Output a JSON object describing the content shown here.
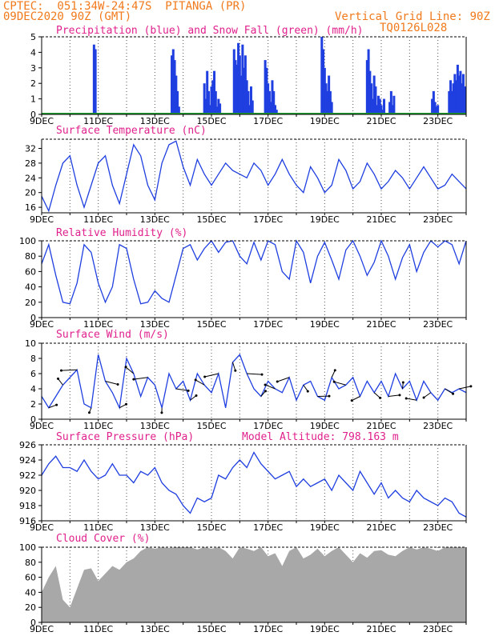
{
  "header": {
    "left_line1": "CPTEC:  051:34W-24:47S  PITANGA (PR)",
    "left_line2": "09DEC2020 90Z (GMT)",
    "right_line1": "Vertical Grid Line: 90Z",
    "right_line2": "TQ0126L028"
  },
  "colors": {
    "header": "#f07a1c",
    "title": "#e0208c",
    "line": "#1f3fe0",
    "cloud": "#a8a8a8",
    "snow": "#21a030",
    "vector": "#000000"
  },
  "x_ticks": [
    "9DEC",
    "11DEC",
    "13DEC",
    "15DEC",
    "17DEC",
    "19DEC",
    "21DEC",
    "23DEC"
  ],
  "chart_data": [
    {
      "id": "precip",
      "type": "bar",
      "title": "Precipitation (blue) and Snow Fall (green) (mm/h)",
      "x_range_days": [
        0,
        15
      ],
      "ylim": [
        0,
        5
      ],
      "y_ticks": [
        "0",
        "1",
        "2",
        "3",
        "4",
        "5"
      ],
      "series": [
        {
          "name": "Precipitation",
          "color": "#1f3fe0",
          "x": [
            1.85,
            1.9,
            4.6,
            4.65,
            4.7,
            4.75,
            4.8,
            4.85,
            5.75,
            5.8,
            5.85,
            5.9,
            5.95,
            6.0,
            6.05,
            6.1,
            6.15,
            6.2,
            6.25,
            6.3,
            6.8,
            6.85,
            6.9,
            6.95,
            7.0,
            7.05,
            7.1,
            7.15,
            7.2,
            7.25,
            7.3,
            7.35,
            7.4,
            7.45,
            7.9,
            7.95,
            8.0,
            8.05,
            8.1,
            8.15,
            8.2,
            8.25,
            8.3,
            9.9,
            9.95,
            10.0,
            10.05,
            10.1,
            10.15,
            10.2,
            10.25,
            11.5,
            11.55,
            11.6,
            11.65,
            11.7,
            11.75,
            11.8,
            11.85,
            11.9,
            11.95,
            12.0,
            12.05,
            12.1,
            12.3,
            12.35,
            12.4,
            12.45,
            13.8,
            13.85,
            13.9,
            13.95,
            14.0,
            14.4,
            14.45,
            14.5,
            14.55,
            14.6,
            14.65,
            14.7,
            14.75,
            14.8,
            14.85,
            14.9,
            14.95
          ],
          "values": [
            4.5,
            4.2,
            3.8,
            4.2,
            3.5,
            2.5,
            1.5,
            0.5,
            2,
            1,
            2.8,
            1.5,
            0.6,
            1.8,
            2.2,
            2.8,
            1.5,
            0.5,
            1.0,
            0.7,
            4.2,
            3.5,
            3.2,
            4.6,
            3.8,
            2.5,
            4.5,
            3.0,
            3.8,
            2.2,
            1.5,
            0.6,
            1.8,
            0.9,
            3.5,
            3.0,
            2.0,
            1.5,
            0.8,
            2.2,
            1.5,
            0.6,
            0.3,
            5.0,
            4.2,
            3.0,
            2.0,
            1.5,
            2.5,
            1.5,
            0.8,
            3.5,
            4.2,
            2.8,
            2.0,
            1.0,
            2.5,
            1.8,
            0.6,
            1.2,
            1.0,
            0.6,
            0.3,
            1.0,
            0.8,
            1.5,
            0.6,
            1.2,
            1.0,
            1.5,
            0.8,
            0.5,
            0.6,
            1.5,
            2.2,
            1.5,
            2.0,
            2.6,
            2.2,
            3.2,
            2.5,
            2.8,
            2.0,
            2.6,
            1.8
          ]
        },
        {
          "name": "Snow Fall",
          "color": "#21a030",
          "x": [
            0,
            15
          ],
          "values": [
            0,
            0
          ]
        }
      ]
    },
    {
      "id": "temp",
      "type": "line",
      "title": "Surface Temperature (nC)",
      "x_range_days": [
        0,
        15
      ],
      "ylim": [
        14.5,
        34.5
      ],
      "y_ticks": [
        "16",
        "20",
        "24",
        "28",
        "32"
      ],
      "y_tick_values": [
        16,
        20,
        24,
        28,
        32
      ],
      "x": [
        0,
        0.25,
        0.5,
        0.75,
        1,
        1.25,
        1.5,
        1.75,
        2,
        2.25,
        2.5,
        2.75,
        3,
        3.25,
        3.5,
        3.75,
        4,
        4.25,
        4.5,
        4.75,
        5,
        5.25,
        5.5,
        5.75,
        6,
        6.25,
        6.5,
        6.75,
        7,
        7.25,
        7.5,
        7.75,
        8,
        8.25,
        8.5,
        8.75,
        9,
        9.25,
        9.5,
        9.75,
        10,
        10.25,
        10.5,
        10.75,
        11,
        11.25,
        11.5,
        11.75,
        12,
        12.25,
        12.5,
        12.75,
        13,
        13.25,
        13.5,
        13.75,
        14,
        14.25,
        14.5,
        14.75,
        15
      ],
      "values": [
        19,
        15,
        22,
        28,
        30,
        22,
        16,
        22,
        28,
        30,
        22,
        17,
        25,
        33,
        30,
        22,
        18,
        28,
        33,
        34,
        27,
        22,
        29,
        25,
        22,
        25,
        28,
        26,
        25,
        24,
        28,
        26,
        22,
        25,
        29,
        25,
        22,
        20,
        27,
        24,
        20,
        22,
        29,
        26,
        21,
        23,
        28,
        25,
        21,
        23,
        26,
        24,
        21,
        24,
        27,
        24,
        21,
        22,
        25,
        23,
        21
      ]
    },
    {
      "id": "rh",
      "type": "line",
      "title": "Relative Humidity (%)",
      "x_range_days": [
        0,
        15
      ],
      "ylim": [
        0,
        100
      ],
      "y_ticks": [
        "0",
        "20",
        "40",
        "60",
        "80",
        "100"
      ],
      "x": [
        0,
        0.25,
        0.5,
        0.75,
        1,
        1.25,
        1.5,
        1.75,
        2,
        2.25,
        2.5,
        2.75,
        3,
        3.25,
        3.5,
        3.75,
        4,
        4.25,
        4.5,
        4.75,
        5,
        5.25,
        5.5,
        5.75,
        6,
        6.25,
        6.5,
        6.75,
        7,
        7.25,
        7.5,
        7.75,
        8,
        8.25,
        8.5,
        8.75,
        9,
        9.25,
        9.5,
        9.75,
        10,
        10.25,
        10.5,
        10.75,
        11,
        11.25,
        11.5,
        11.75,
        12,
        12.25,
        12.5,
        12.75,
        13,
        13.25,
        13.5,
        13.75,
        14,
        14.25,
        14.5,
        14.75,
        15
      ],
      "values": [
        70,
        95,
        55,
        20,
        18,
        45,
        95,
        85,
        45,
        20,
        40,
        95,
        90,
        50,
        18,
        20,
        35,
        25,
        20,
        55,
        90,
        95,
        75,
        90,
        100,
        85,
        98,
        100,
        80,
        70,
        98,
        75,
        100,
        95,
        60,
        50,
        100,
        85,
        45,
        80,
        98,
        75,
        50,
        88,
        100,
        80,
        55,
        72,
        100,
        80,
        50,
        78,
        95,
        60,
        85,
        100,
        92,
        100,
        95,
        70,
        100
      ]
    },
    {
      "id": "wind",
      "type": "line",
      "title": "Surface Wind (m/s)",
      "x_range_days": [
        0,
        15
      ],
      "ylim": [
        0,
        10
      ],
      "y_ticks": [
        "0",
        "2",
        "4",
        "6",
        "8",
        "10"
      ],
      "x": [
        0,
        0.25,
        0.5,
        0.75,
        1,
        1.25,
        1.5,
        1.75,
        2,
        2.25,
        2.5,
        2.75,
        3,
        3.25,
        3.5,
        3.75,
        4,
        4.25,
        4.5,
        4.75,
        5,
        5.25,
        5.5,
        5.75,
        6,
        6.25,
        6.5,
        6.75,
        7,
        7.25,
        7.5,
        7.75,
        8,
        8.25,
        8.5,
        8.75,
        9,
        9.25,
        9.5,
        9.75,
        10,
        10.25,
        10.5,
        10.75,
        11,
        11.25,
        11.5,
        11.75,
        12,
        12.25,
        12.5,
        12.75,
        13,
        13.25,
        13.5,
        13.75,
        14,
        14.25,
        14.5,
        14.75,
        15
      ],
      "values": [
        3.0,
        1.5,
        3.0,
        4.5,
        5.5,
        6.5,
        2.0,
        1.5,
        8.5,
        5.0,
        3.5,
        1.5,
        8.0,
        6.0,
        3.0,
        5.5,
        4.5,
        1.5,
        6.0,
        4.0,
        5.0,
        2.5,
        6.0,
        4.5,
        3.5,
        6.0,
        1.5,
        7.5,
        8.5,
        6.0,
        4.0,
        3.0,
        5.0,
        4.0,
        3.5,
        5.5,
        2.5,
        4.5,
        5.0,
        3.0,
        2.5,
        5.5,
        4.0,
        4.5,
        5.5,
        3.0,
        5.0,
        3.5,
        5.0,
        3.0,
        6.0,
        4.0,
        5.0,
        2.5,
        5.0,
        3.5,
        2.5,
        4.0,
        3.5,
        4.0,
        3.5
      ]
    },
    {
      "id": "pressure",
      "type": "line",
      "title": "Surface Pressure (hPa)",
      "annotation": "Model Altitude: 798.163 m",
      "x_range_days": [
        0,
        15
      ],
      "ylim": [
        916,
        926
      ],
      "y_ticks": [
        "916",
        "918",
        "920",
        "922",
        "924",
        "926"
      ],
      "x": [
        0,
        0.25,
        0.5,
        0.75,
        1,
        1.25,
        1.5,
        1.75,
        2,
        2.25,
        2.5,
        2.75,
        3,
        3.25,
        3.5,
        3.75,
        4,
        4.25,
        4.5,
        4.75,
        5,
        5.25,
        5.5,
        5.75,
        6,
        6.25,
        6.5,
        6.75,
        7,
        7.25,
        7.5,
        7.75,
        8,
        8.25,
        8.5,
        8.75,
        9,
        9.25,
        9.5,
        9.75,
        10,
        10.25,
        10.5,
        10.75,
        11,
        11.25,
        11.5,
        11.75,
        12,
        12.25,
        12.5,
        12.75,
        13,
        13.25,
        13.5,
        13.75,
        14,
        14.25,
        14.5,
        14.75,
        15
      ],
      "values": [
        922,
        923.5,
        924.5,
        923,
        923,
        922.5,
        924,
        922.5,
        921.5,
        922,
        923.5,
        922,
        922,
        921,
        922.5,
        922,
        923,
        921,
        920,
        919.5,
        918,
        917,
        919,
        918.5,
        919,
        922,
        921.5,
        923,
        924,
        923,
        925,
        923.5,
        922.5,
        921.5,
        922,
        922.5,
        920.5,
        921.5,
        920.5,
        921,
        921.5,
        920,
        922,
        921,
        920,
        922.5,
        921,
        919.5,
        921,
        919,
        920,
        919,
        918.5,
        920,
        919,
        918.5,
        918,
        919,
        918.5,
        917,
        916.5
      ]
    },
    {
      "id": "cloud",
      "type": "area",
      "title": "Cloud Cover (%)",
      "x_range_days": [
        0,
        15
      ],
      "ylim": [
        0,
        100
      ],
      "y_ticks": [
        "0",
        "20",
        "40",
        "60",
        "80",
        "100"
      ],
      "x": [
        0,
        0.25,
        0.5,
        0.75,
        1,
        1.25,
        1.5,
        1.75,
        2,
        2.25,
        2.5,
        2.75,
        3,
        3.25,
        3.5,
        3.75,
        4,
        4.25,
        4.5,
        4.75,
        5,
        5.25,
        5.5,
        5.75,
        6,
        6.25,
        6.5,
        6.75,
        7,
        7.25,
        7.5,
        7.75,
        8,
        8.25,
        8.5,
        8.75,
        9,
        9.25,
        9.5,
        9.75,
        10,
        10.25,
        10.5,
        10.75,
        11,
        11.25,
        11.5,
        11.75,
        12,
        12.25,
        12.5,
        12.75,
        13,
        13.25,
        13.5,
        13.75,
        14,
        14.25,
        14.5,
        14.75,
        15
      ],
      "values": [
        40,
        60,
        75,
        30,
        20,
        45,
        70,
        72,
        55,
        65,
        75,
        70,
        80,
        85,
        95,
        100,
        98,
        100,
        99,
        100,
        100,
        100,
        97,
        100,
        98,
        100,
        95,
        85,
        100,
        98,
        95,
        100,
        88,
        92,
        75,
        95,
        100,
        85,
        90,
        98,
        88,
        95,
        100,
        90,
        80,
        92,
        86,
        95,
        96,
        90,
        88,
        95,
        100,
        97,
        100,
        98,
        95,
        100,
        100,
        100,
        100
      ]
    }
  ]
}
